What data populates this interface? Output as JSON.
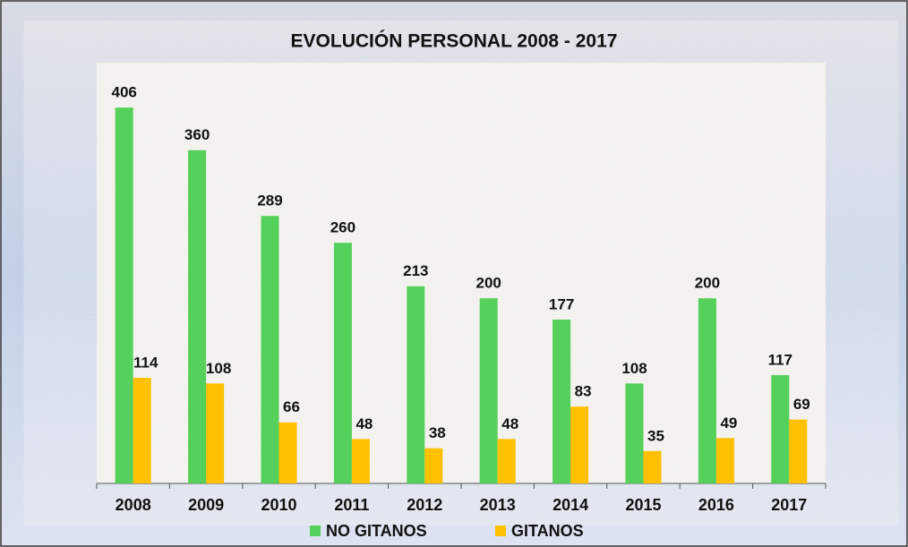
{
  "chart_data": {
    "type": "bar",
    "title": "EVOLUCIÓN PERSONAL 2008 - 2017",
    "categories": [
      "2008",
      "2009",
      "2010",
      "2011",
      "2012",
      "2013",
      "2014",
      "2015",
      "2016",
      "2017"
    ],
    "series": [
      {
        "name": "NO GITANOS",
        "color": "#55d05a",
        "values": [
          406,
          360,
          289,
          260,
          213,
          200,
          177,
          108,
          200,
          117
        ]
      },
      {
        "name": "GITANOS",
        "color": "#ffc000",
        "values": [
          114,
          108,
          66,
          48,
          38,
          48,
          83,
          35,
          49,
          69
        ]
      }
    ]
  }
}
